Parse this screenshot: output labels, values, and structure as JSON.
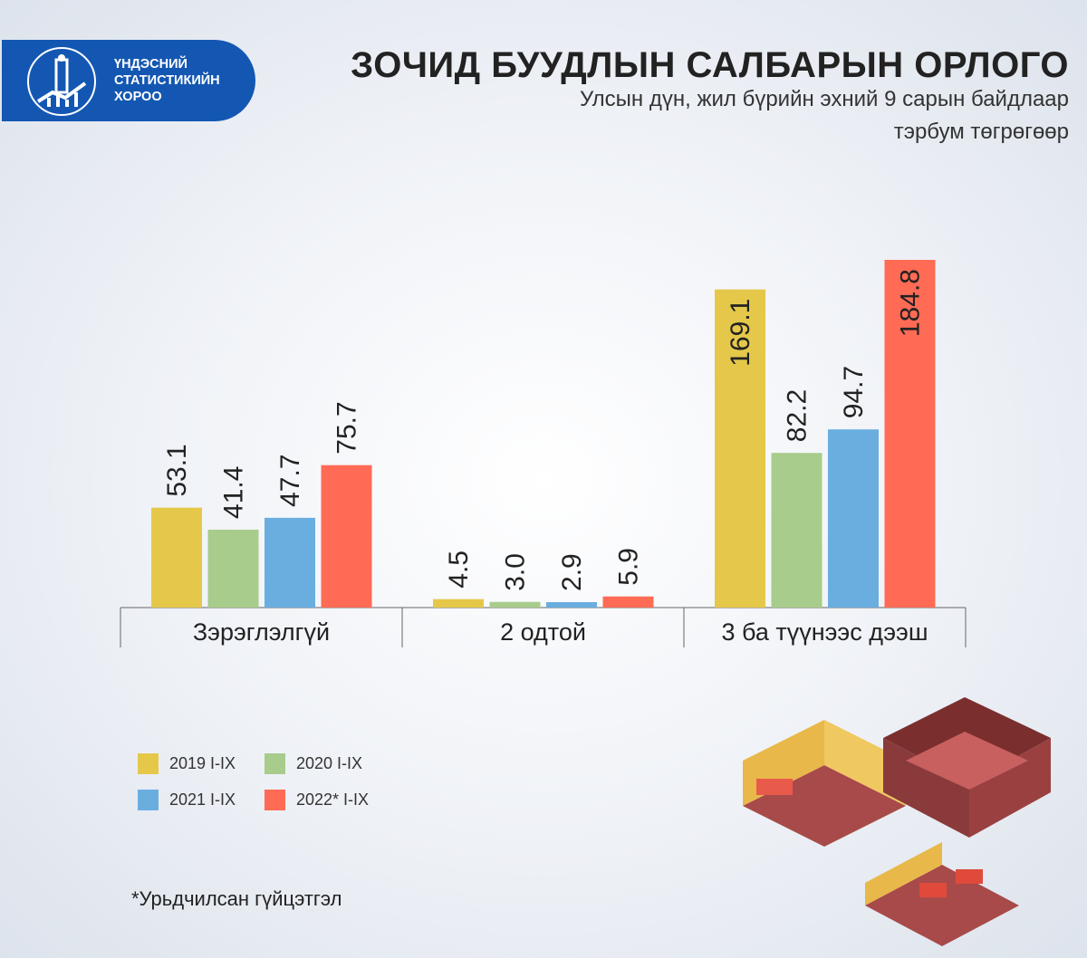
{
  "logo": {
    "lines": [
      "ҮНДЭСНИЙ",
      "СТАТИСТИКИЙН",
      "ХОРОО"
    ],
    "color": "#1457B3"
  },
  "chart_data": {
    "type": "bar",
    "title": "ЗОЧИД БУУДЛЫН САЛБАРЫН ОРЛОГО",
    "subtitle": "Улсын дүн, жил бүрийн эхний 9 сарын байдлаар",
    "unit": "тэрбум төгрөгөөр",
    "categories": [
      "Зэрэглэлгүй",
      "2 одтой",
      "3 ба түүнээс дээш"
    ],
    "series": [
      {
        "name": "2019 I-IX",
        "color": "#E5C84A",
        "values": [
          53.1,
          4.5,
          169.1
        ],
        "labels": [
          "53.1",
          "4.5",
          "169.1"
        ]
      },
      {
        "name": "2020 I-IX",
        "color": "#A8CC8C",
        "values": [
          41.4,
          3.0,
          82.2
        ],
        "labels": [
          "41.4",
          "3.0",
          "82.2"
        ]
      },
      {
        "name": "2021 I-IX",
        "color": "#6AAEE0",
        "values": [
          47.7,
          2.9,
          94.7
        ],
        "labels": [
          "47.7",
          "2.9",
          "94.7"
        ]
      },
      {
        "name": "2022* I-IX",
        "color": "#FF6B55",
        "values": [
          75.7,
          5.9,
          184.8
        ],
        "labels": [
          "75.7",
          "5.9",
          "184.8"
        ]
      }
    ],
    "ylim": [
      0,
      184.8
    ],
    "grid": false,
    "legend_placement": "bottom-left"
  },
  "footnote": "*Урьдчилсан гүйцэтгэл"
}
